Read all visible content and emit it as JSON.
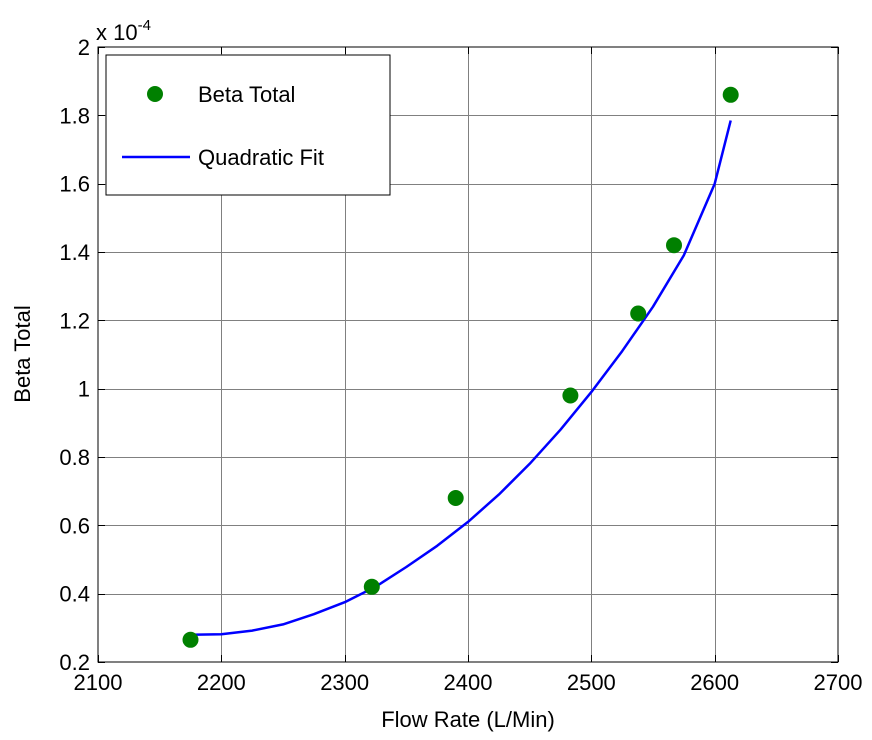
{
  "chart_data": {
    "type": "scatter",
    "title": "",
    "xlabel": "Flow Rate (L/Min)",
    "ylabel": "Beta Total",
    "exponent_label": "x 10",
    "exponent_power": "-4",
    "xlim": [
      2100,
      2700
    ],
    "ylim": [
      0.2,
      2
    ],
    "xticks": [
      2100,
      2200,
      2300,
      2400,
      2500,
      2600,
      2700
    ],
    "xtick_labels": [
      "2100",
      "2200",
      "2300",
      "2400",
      "2500",
      "2600",
      "2700"
    ],
    "yticks": [
      0.2,
      0.4,
      0.6,
      0.8,
      1.0,
      1.2,
      1.4,
      1.6,
      1.8,
      2.0
    ],
    "ytick_labels": [
      "0.2",
      "0.4",
      "0.6",
      "0.8",
      "1",
      "1.2",
      "1.4",
      "1.6",
      "1.8",
      "2"
    ],
    "grid": true,
    "legend_position": "top-left",
    "series": [
      {
        "name": "Beta Total",
        "kind": "points",
        "color": "#008000",
        "x": [
          2175,
          2322,
          2390,
          2483,
          2538,
          2567,
          2613
        ],
        "y": [
          0.265,
          0.42,
          0.68,
          0.98,
          1.22,
          1.42,
          1.86
        ]
      },
      {
        "name": "Quadratic Fit",
        "kind": "line",
        "color": "#0000ff",
        "x": [
          2175,
          2200,
          2225,
          2250,
          2275,
          2300,
          2325,
          2350,
          2375,
          2400,
          2425,
          2450,
          2475,
          2500,
          2525,
          2550,
          2575,
          2600,
          2613
        ],
        "y": [
          0.28,
          0.281,
          0.292,
          0.31,
          0.34,
          0.375,
          0.42,
          0.478,
          0.54,
          0.61,
          0.69,
          0.78,
          0.88,
          0.99,
          1.11,
          1.24,
          1.39,
          1.6,
          1.785
        ]
      }
    ]
  }
}
